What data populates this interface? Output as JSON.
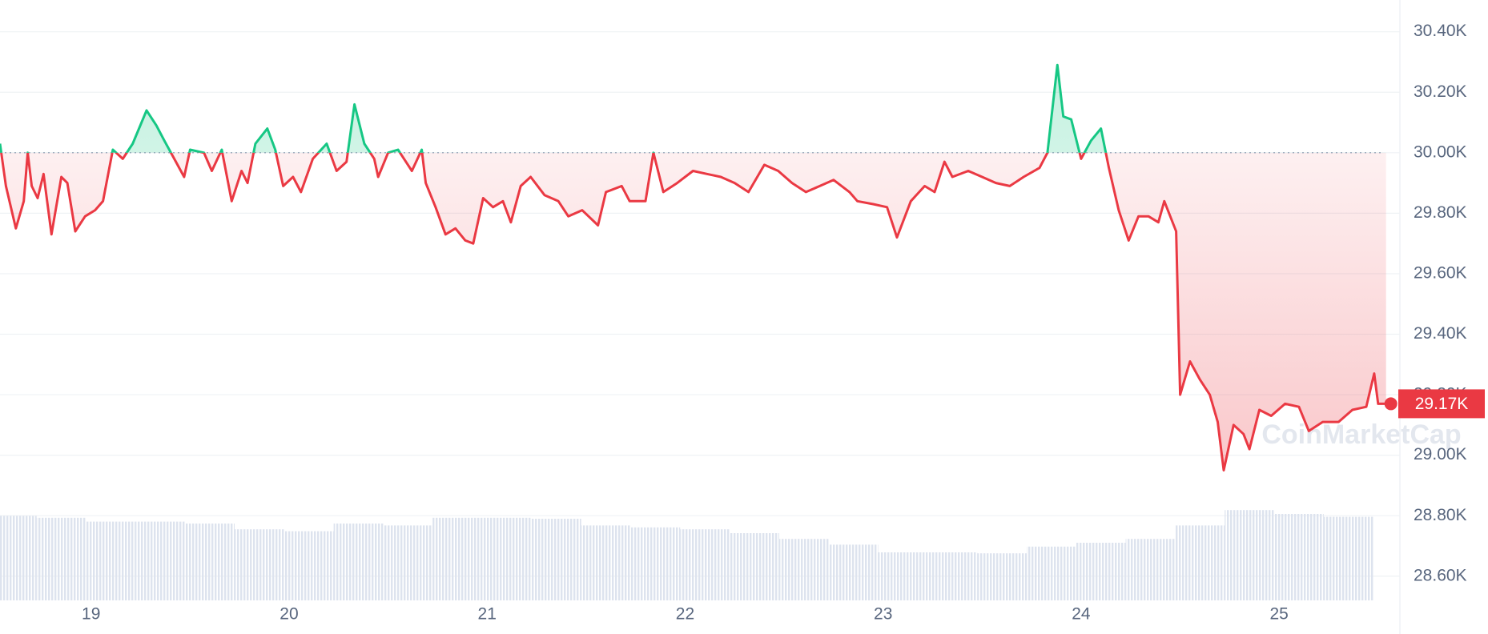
{
  "chart_data": {
    "type": "line",
    "x": [
      18.54,
      18.57,
      18.62,
      18.66,
      18.68,
      18.7,
      18.73,
      18.76,
      18.8,
      18.85,
      18.88,
      18.92,
      18.97,
      19.02,
      19.06,
      19.11,
      19.16,
      19.21,
      19.28,
      19.33,
      19.37,
      19.42,
      19.47,
      19.5,
      19.57,
      19.61,
      19.66,
      19.71,
      19.76,
      19.79,
      19.83,
      19.89,
      19.93,
      19.97,
      20.02,
      20.06,
      20.12,
      20.19,
      20.24,
      20.29,
      20.33,
      20.38,
      20.43,
      20.45,
      20.5,
      20.55,
      20.62,
      20.67,
      20.69,
      20.74,
      20.79,
      20.84,
      20.89,
      20.93,
      20.98,
      21.03,
      21.08,
      21.12,
      21.17,
      21.22,
      21.29,
      21.36,
      21.41,
      21.48,
      21.56,
      21.6,
      21.68,
      21.72,
      21.8,
      21.84,
      21.89,
      21.96,
      22.04,
      22.11,
      22.18,
      22.25,
      22.32,
      22.4,
      22.47,
      22.54,
      22.61,
      22.68,
      22.75,
      22.83,
      22.87,
      22.95,
      23.02,
      23.07,
      23.14,
      23.21,
      23.26,
      23.31,
      23.35,
      23.43,
      23.5,
      23.57,
      23.64,
      23.71,
      23.79,
      23.83,
      23.88,
      23.91,
      23.95,
      24.0,
      24.05,
      24.1,
      24.14,
      24.19,
      24.24,
      24.29,
      24.34,
      24.39,
      24.42,
      24.48,
      24.5,
      24.55,
      24.6,
      24.65,
      24.69,
      24.72,
      24.77,
      24.82,
      24.85,
      24.9,
      24.96,
      25.03,
      25.1,
      25.15,
      25.22,
      25.3,
      25.37,
      25.44,
      25.48,
      25.5,
      25.54
    ],
    "series": [
      {
        "values": [
          30.03,
          29.89,
          29.75,
          29.84,
          30.0,
          29.89,
          29.85,
          29.93,
          29.73,
          29.92,
          29.9,
          29.74,
          29.79,
          29.81,
          29.84,
          30.01,
          29.98,
          30.03,
          30.14,
          30.09,
          30.04,
          29.98,
          29.92,
          30.01,
          30.0,
          29.94,
          30.01,
          29.84,
          29.94,
          29.9,
          30.03,
          30.08,
          30.01,
          29.89,
          29.92,
          29.87,
          29.98,
          30.03,
          29.94,
          29.97,
          30.16,
          30.03,
          29.98,
          29.92,
          30.0,
          30.01,
          29.94,
          30.01,
          29.9,
          29.82,
          29.73,
          29.75,
          29.71,
          29.7,
          29.85,
          29.82,
          29.84,
          29.77,
          29.89,
          29.92,
          29.86,
          29.84,
          29.79,
          29.81,
          29.76,
          29.87,
          29.89,
          29.84,
          29.84,
          30.0,
          29.87,
          29.9,
          29.94,
          29.93,
          29.92,
          29.9,
          29.87,
          29.96,
          29.94,
          29.9,
          29.87,
          29.89,
          29.91,
          29.87,
          29.84,
          29.83,
          29.82,
          29.72,
          29.84,
          29.89,
          29.87,
          29.97,
          29.92,
          29.94,
          29.92,
          29.9,
          29.89,
          29.92,
          29.95,
          30.0,
          30.29,
          30.12,
          30.11,
          29.98,
          30.04,
          30.08,
          29.95,
          29.81,
          29.71,
          29.79,
          29.79,
          29.77,
          29.84,
          29.74,
          29.2,
          29.31,
          29.25,
          29.2,
          29.11,
          28.95,
          29.1,
          29.07,
          29.02,
          29.15,
          29.13,
          29.17,
          29.16,
          29.08,
          29.11,
          29.11,
          29.15,
          29.16,
          29.27,
          29.17,
          29.17
        ]
      }
    ],
    "baseline": 30,
    "up_color": "#16c784",
    "down_color": "#ea3943",
    "last_price": {
      "value": 29.17,
      "label": "29.17K"
    },
    "xlim": [
      18.54,
      25.61
    ],
    "xticks": [
      19,
      20,
      21,
      22,
      23,
      24,
      25
    ],
    "ylim": [
      28.52,
      30.505
    ],
    "yticks": [
      {
        "value": 28.6,
        "label": "28.60K"
      },
      {
        "value": 28.8,
        "label": "28.80K"
      },
      {
        "value": 29.0,
        "label": "29.00K"
      },
      {
        "value": 29.2,
        "label": "29.20K"
      },
      {
        "value": 29.4,
        "label": "29.40K"
      },
      {
        "value": 29.6,
        "label": "29.60K"
      },
      {
        "value": 29.8,
        "label": "29.80K"
      },
      {
        "value": 30.0,
        "label": "30.00K"
      },
      {
        "value": 30.2,
        "label": "30.20K"
      },
      {
        "value": 30.4,
        "label": "30.40K"
      }
    ],
    "grid": true,
    "volume": {
      "x": [
        18.6,
        18.85,
        19.1,
        19.35,
        19.6,
        19.85,
        20.1,
        20.35,
        20.6,
        20.85,
        21.1,
        21.35,
        21.6,
        21.85,
        22.1,
        22.35,
        22.6,
        22.85,
        23.1,
        23.35,
        23.6,
        23.85,
        24.1,
        24.35,
        24.6,
        24.85,
        25.1,
        25.35
      ],
      "values": [
        88,
        86,
        82,
        82,
        80,
        74,
        72,
        80,
        78,
        86,
        86,
        85,
        78,
        76,
        74,
        70,
        64,
        58,
        50,
        50,
        49,
        56,
        60,
        64,
        78,
        94,
        90,
        87
      ],
      "ylim": [
        0,
        100
      ],
      "color": "#dde3ee"
    },
    "watermark": "CoinMarketCap"
  }
}
